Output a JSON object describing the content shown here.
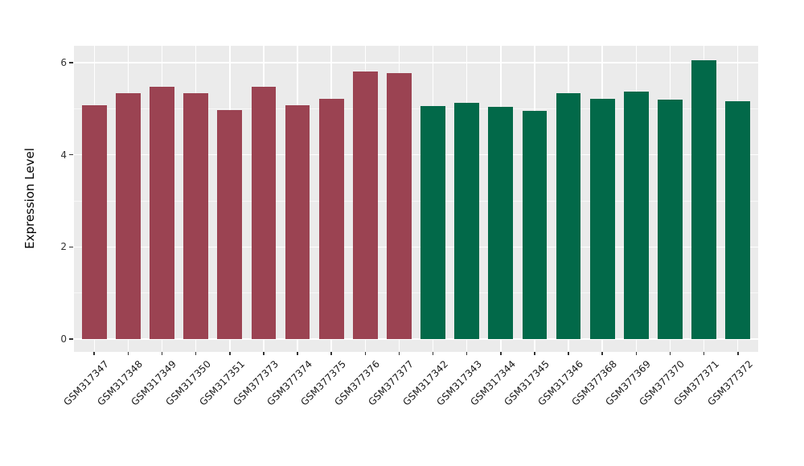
{
  "chart_data": {
    "type": "bar",
    "title": "",
    "xlabel": "",
    "ylabel": "Expression Level",
    "categories": [
      "GSM317347",
      "GSM317348",
      "GSM317349",
      "GSM317350",
      "GSM317351",
      "GSM377373",
      "GSM377374",
      "GSM377375",
      "GSM377376",
      "GSM377377",
      "GSM317342",
      "GSM317343",
      "GSM317344",
      "GSM317345",
      "GSM317346",
      "GSM377368",
      "GSM377369",
      "GSM377370",
      "GSM377371",
      "GSM377372"
    ],
    "values": [
      5.08,
      5.34,
      5.47,
      5.33,
      4.97,
      5.47,
      5.08,
      5.21,
      5.81,
      5.78,
      5.05,
      5.12,
      5.04,
      4.95,
      5.33,
      5.21,
      5.37,
      5.2,
      6.06,
      5.17
    ],
    "bar_colors": [
      "#9b4352",
      "#9b4352",
      "#9b4352",
      "#9b4352",
      "#9b4352",
      "#9b4352",
      "#9b4352",
      "#9b4352",
      "#9b4352",
      "#9b4352",
      "#026949",
      "#026949",
      "#026949",
      "#026949",
      "#026949",
      "#026949",
      "#026949",
      "#026949",
      "#026949",
      "#026949"
    ],
    "group_colors": {
      "left_group": "#9b4352",
      "right_group": "#026949"
    },
    "yticks": [
      0,
      2,
      4,
      6
    ],
    "yminor": [
      1,
      3,
      5
    ],
    "ytick_labels": [
      "0",
      "2",
      "4",
      "6"
    ],
    "ylim": [
      0,
      6.37
    ],
    "grid": true,
    "legend": "none",
    "panel_background": "#ebebeb",
    "gridline_color": "#ffffff",
    "tick_text_color": "#333333",
    "bar_width_fraction": 0.73
  }
}
